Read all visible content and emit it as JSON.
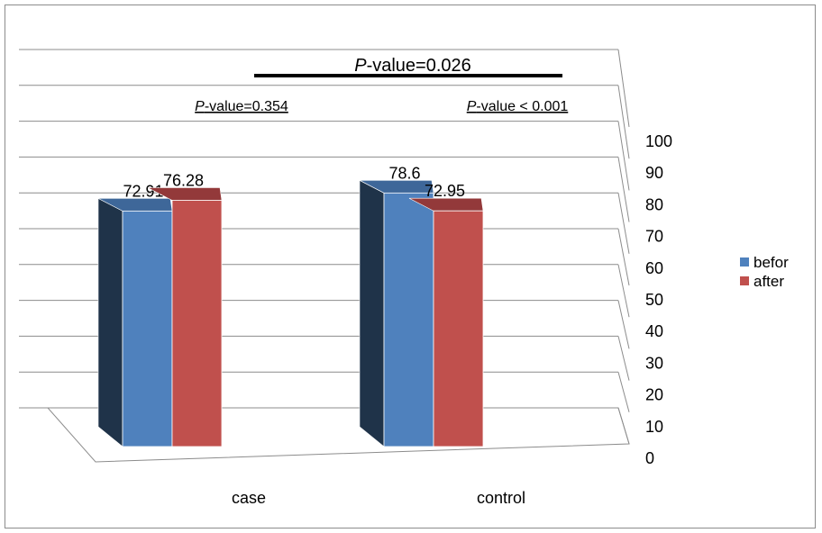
{
  "colors": {
    "befor": "#4f81bd",
    "befor_dark": "#1f3349",
    "befor_top": "#3e6799",
    "after": "#c0504d",
    "after_dark": "#7a2d2b",
    "after_top": "#93393a"
  },
  "chart_data": {
    "type": "bar",
    "categories": [
      "case",
      "control"
    ],
    "series": [
      {
        "name": "befor",
        "values": [
          72.91,
          78.6
        ]
      },
      {
        "name": "after",
        "values": [
          76.28,
          72.95
        ]
      }
    ],
    "data_labels": [
      "72.91",
      "76.28",
      "78.6",
      "72.95"
    ],
    "ylim": [
      0,
      100
    ],
    "yticks": [
      "0",
      "10",
      "20",
      "30",
      "40",
      "50",
      "60",
      "70",
      "80",
      "90",
      "100"
    ],
    "legend_position": "right",
    "grid": true,
    "style": "3d-clustered-column",
    "annotations": {
      "overall": {
        "p_italic": "P",
        "rest": "-value=0.026"
      },
      "case": {
        "p_italic": "P",
        "rest": "-value=0.354"
      },
      "control": {
        "p_italic": "P",
        "rest": "-value < 0.001"
      }
    }
  }
}
